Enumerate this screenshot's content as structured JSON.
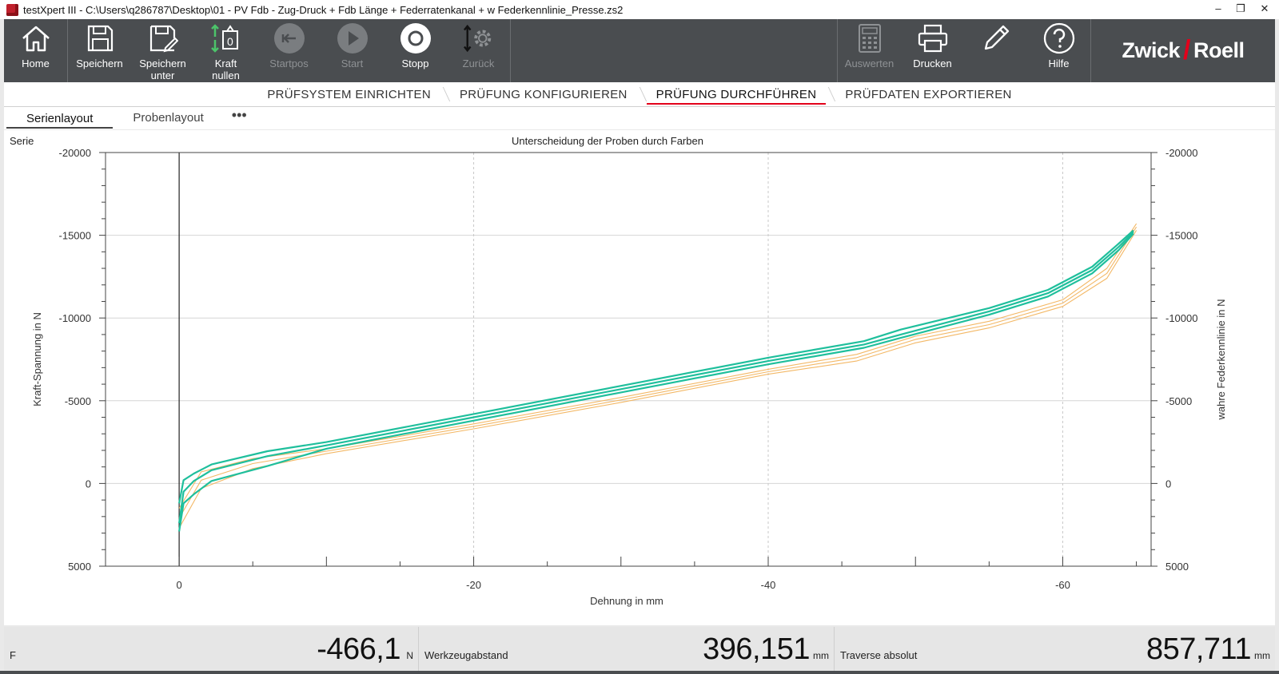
{
  "window": {
    "title": "testXpert III - C:\\Users\\q286787\\Desktop\\01 - PV Fdb - Zug-Druck + Fdb Länge + Federratenkanal + w Federkennlinie_Presse.zs2",
    "minimize": "–",
    "maximize": "❐",
    "close": "✕"
  },
  "toolbar": {
    "home": "Home",
    "save": "Speichern",
    "save_as_1": "Speichern",
    "save_as_2": "unter",
    "zero_force_1": "Kraft",
    "zero_force_2": "nullen",
    "startpos": "Startpos",
    "start": "Start",
    "stop": "Stopp",
    "back": "Zurück",
    "evaluate": "Auswerten",
    "print": "Drucken",
    "help": "Hilfe",
    "brand_left": "Zwick",
    "brand_slash": "/",
    "brand_right": "Roell"
  },
  "workflow_tabs": [
    "PRÜFSYSTEM EINRICHTEN",
    "PRÜFUNG KONFIGURIEREN",
    "PRÜFUNG DURCHFÜHREN",
    "PRÜFDATEN EXPORTIEREN"
  ],
  "layout_tabs": {
    "series": "Serienlayout",
    "specimen": "Probenlayout",
    "more": "•••"
  },
  "panel": {
    "series_label": "Serie"
  },
  "colors": {
    "accent_red": "#e3001b",
    "toolbar_bg": "#4a4d50",
    "curve_teal": "#1fbf9c",
    "curve_orange": "#f3b866"
  },
  "chart_data": {
    "type": "line",
    "title": "Unterscheidung der Proben durch Farben",
    "xlabel": "Dehnung in mm",
    "ylabel": "Kraft-Spannung in N",
    "y2label": "wahre Federkennlinie in N",
    "xlim": [
      5,
      -66
    ],
    "ylim": [
      5000,
      -20000
    ],
    "x_tick_labels": [
      "0",
      "-20",
      "-40",
      "-60"
    ],
    "y_tick_labels": [
      "-20000",
      "-15000",
      "-10000",
      "-5000",
      "0",
      "5000"
    ],
    "y2_tick_labels": [
      "-20000",
      "-15000",
      "-10000",
      "-5000",
      "0",
      "5000"
    ],
    "grid": true,
    "series": [
      {
        "color": "#1fbf9c",
        "width": 2.2,
        "x": [
          0,
          -0.3,
          -1,
          -2.2,
          -6,
          -10,
          -20,
          -30,
          -40,
          -46.5,
          -49,
          -55,
          -59,
          -62,
          -63.8,
          -64.8
        ],
        "y": [
          1200,
          -200,
          -600,
          -1150,
          -1950,
          -2500,
          -4200,
          -5900,
          -7600,
          -8600,
          -9300,
          -10600,
          -11700,
          -13100,
          -14500,
          -15300
        ]
      },
      {
        "color": "#1fbf9c",
        "width": 2.2,
        "x": [
          0,
          -0.3,
          -1,
          -2.2,
          -6,
          -10,
          -20,
          -30,
          -40,
          -46.5,
          -49,
          -55,
          -59,
          -62,
          -63.8,
          -64.8
        ],
        "y": [
          2400,
          500,
          -150,
          -800,
          -1650,
          -2300,
          -4000,
          -5700,
          -7400,
          -8400,
          -9000,
          -10400,
          -11500,
          -12900,
          -14300,
          -15200
        ]
      },
      {
        "color": "#1fbf9c",
        "width": 2.2,
        "x": [
          0,
          -0.3,
          -1,
          -2.2,
          -6,
          -10,
          -20,
          -30,
          -40,
          -46.5,
          -49,
          -55,
          -59,
          -62,
          -63.8,
          -64.8
        ],
        "y": [
          2900,
          1200,
          650,
          -150,
          -1050,
          -2100,
          -3800,
          -5500,
          -7200,
          -8200,
          -8800,
          -10200,
          -11300,
          -12700,
          -14100,
          -15100
        ]
      },
      {
        "color": "#f3b866",
        "width": 1.1,
        "x": [
          0,
          -1.5,
          -5,
          -10,
          -20,
          -30,
          -40,
          -46,
          -50,
          -55,
          -60,
          -63,
          -65
        ],
        "y": [
          1500,
          -700,
          -1500,
          -2100,
          -3600,
          -5200,
          -6900,
          -7800,
          -8900,
          -9800,
          -11100,
          -13000,
          -15700
        ]
      },
      {
        "color": "#f3b866",
        "width": 1.1,
        "x": [
          0,
          -1.5,
          -5,
          -10,
          -20,
          -30,
          -40,
          -46,
          -50,
          -55,
          -60,
          -63,
          -65
        ],
        "y": [
          2100,
          -200,
          -1200,
          -1950,
          -3450,
          -5050,
          -6750,
          -7600,
          -8700,
          -9600,
          -10900,
          -12700,
          -15500
        ]
      },
      {
        "color": "#f3b866",
        "width": 1.1,
        "x": [
          0,
          -1.5,
          -5,
          -10,
          -20,
          -30,
          -40,
          -46,
          -50,
          -55,
          -60,
          -63,
          -65
        ],
        "y": [
          2700,
          300,
          -900,
          -1800,
          -3300,
          -4900,
          -6600,
          -7400,
          -8500,
          -9400,
          -10700,
          -12400,
          -15300
        ]
      }
    ]
  },
  "status": {
    "f_label": "F",
    "f_value": "-466,1",
    "f_unit": "N",
    "tool_distance_label": "Werkzeugabstand",
    "tool_distance_value": "396,151",
    "tool_distance_unit": "mm",
    "crosshead_label": "Traverse absolut",
    "crosshead_value": "857,711",
    "crosshead_unit": "mm"
  }
}
